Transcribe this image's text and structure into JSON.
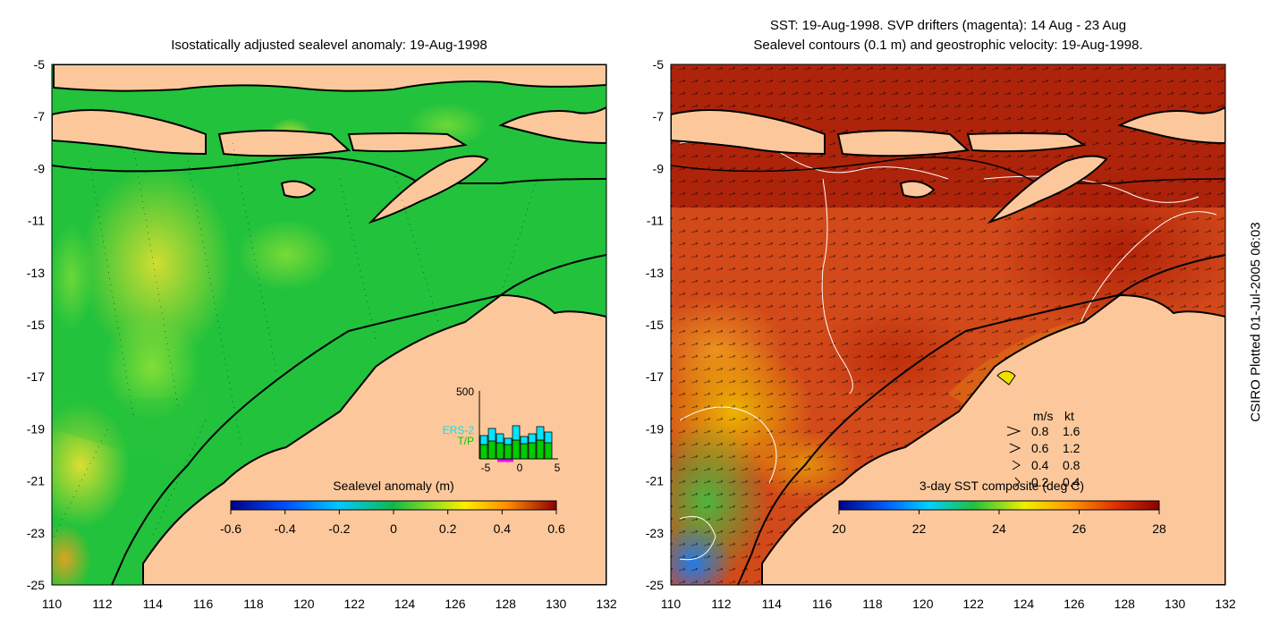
{
  "left_panel": {
    "title": "Isostatically adjusted sealevel anomaly: 19-Aug-1998",
    "colorbar_label": "Sealevel anomaly (m)",
    "colorbar_ticks": [
      "-0.6",
      "-0.4",
      "-0.2",
      "0",
      "0.2",
      "0.4",
      "0.6"
    ],
    "inset": {
      "ymax_label": "500",
      "legend": [
        "ERS-2",
        "T/P"
      ],
      "x_ticks": [
        "-5",
        "0",
        "5"
      ],
      "colors": {
        "ers2": "#00e5ff",
        "tp": "#00cc00",
        "marker": "#ff00ff"
      }
    }
  },
  "right_panel": {
    "title_line1": "SST: 19-Aug-1998. SVP drifters (magenta): 14 Aug - 23 Aug",
    "title_line2": "Sealevel contours (0.1 m) and geostrophic velocity: 19-Aug-1998.",
    "colorbar_label": "3-day SST composite (deg C)",
    "colorbar_ticks": [
      "20",
      "22",
      "24",
      "26",
      "28"
    ],
    "velocity_legend": {
      "header_ms": "m/s",
      "header_kt": "kt",
      "rows": [
        {
          "ms": "0.8",
          "kt": "1.6"
        },
        {
          "ms": "0.6",
          "kt": "1.2"
        },
        {
          "ms": "0.4",
          "kt": "0.8"
        },
        {
          "ms": "0.2",
          "kt": "0.4"
        }
      ]
    }
  },
  "axes": {
    "lat_labels": [
      "-5",
      "-7",
      "-9",
      "-11",
      "-13",
      "-15",
      "-17",
      "-19",
      "-21",
      "-23",
      "-25"
    ],
    "lon_labels": [
      "110",
      "112",
      "114",
      "116",
      "118",
      "120",
      "122",
      "124",
      "126",
      "128",
      "130",
      "132"
    ]
  },
  "footer": {
    "plotted": "CSIRO Plotted 01-Jul-2005 06:03"
  },
  "colors": {
    "land": "#fcc89b",
    "sla_base": "#22c23c",
    "sst_base": "#d2491a"
  }
}
